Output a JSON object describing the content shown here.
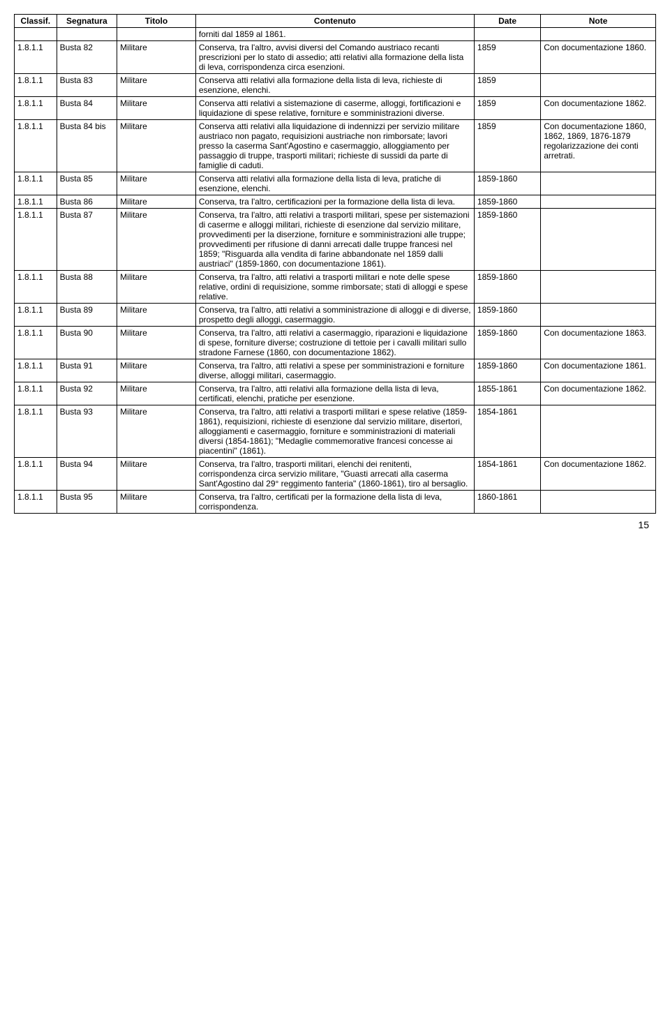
{
  "headers": {
    "classif": "Classif.",
    "segnatura": "Segnatura",
    "titolo": "Titolo",
    "contenuto": "Contenuto",
    "date": "Date",
    "note": "Note"
  },
  "rows": [
    {
      "classif": "",
      "segnatura": "",
      "titolo": "",
      "contenuto": "forniti dal 1859 al 1861.",
      "date": "",
      "note": ""
    },
    {
      "classif": "1.8.1.1",
      "segnatura": "Busta 82",
      "titolo": "Militare",
      "contenuto": "Conserva, tra l'altro, avvisi diversi del Comando austriaco recanti prescrizioni per lo stato di assedio; atti relativi alla formazione della lista di leva, corrispondenza circa esenzioni.",
      "date": "1859",
      "note": "Con documentazione 1860."
    },
    {
      "classif": "1.8.1.1",
      "segnatura": "Busta 83",
      "titolo": "Militare",
      "contenuto": "Conserva atti relativi alla formazione della lista di leva, richieste di esenzione, elenchi.",
      "date": "1859",
      "note": ""
    },
    {
      "classif": "1.8.1.1",
      "segnatura": "Busta 84",
      "titolo": "Militare",
      "contenuto": "Conserva atti relativi a sistemazione di caserme, alloggi, fortificazioni e liquidazione di spese relative, forniture e somministrazioni diverse.",
      "date": "1859",
      "note": "Con documentazione 1862."
    },
    {
      "classif": "1.8.1.1",
      "segnatura": "Busta 84 bis",
      "titolo": "Militare",
      "contenuto": "Conserva atti relativi alla liquidazione di indennizzi per servizio militare austriaco non pagato, requisizioni austriache non rimborsate; lavori presso la caserma Sant'Agostino e casermaggio, alloggiamento per passaggio di truppe, trasporti militari; richieste di sussidi da parte di famiglie di caduti.",
      "date": "1859",
      "note": "Con documentazione 1860, 1862, 1869, 1876-1879 regolarizzazione dei conti arretrati."
    },
    {
      "classif": "1.8.1.1",
      "segnatura": "Busta 85",
      "titolo": "Militare",
      "contenuto": "Conserva atti relativi alla formazione della lista di leva, pratiche di esenzione, elenchi.",
      "date": "1859-1860",
      "note": ""
    },
    {
      "classif": "1.8.1.1",
      "segnatura": "Busta 86",
      "titolo": "Militare",
      "contenuto": "Conserva, tra l'altro, certificazioni per la formazione della lista di leva.",
      "date": "1859-1860",
      "note": ""
    },
    {
      "classif": "1.8.1.1",
      "segnatura": "Busta 87",
      "titolo": "Militare",
      "contenuto": "Conserva, tra l'altro, atti relativi a trasporti militari, spese per sistemazioni di caserme e alloggi militari, richieste di esenzione dal servizio militare, provvedimenti per la diserzione, forniture e somministrazioni alle truppe; provvedimenti per rifusione di danni arrecati dalle truppe francesi nel 1859; \"Risguarda alla vendita di farine abbandonate nel 1859 dalli austriaci\" (1859-1860, con documentazione 1861).",
      "date": "1859-1860",
      "note": ""
    },
    {
      "classif": "1.8.1.1",
      "segnatura": "Busta 88",
      "titolo": "Militare",
      "contenuto": "Conserva, tra l'altro, atti relativi a trasporti militari e note delle spese relative, ordini di requisizione, somme rimborsate; stati di alloggi e spese relative.",
      "date": "1859-1860",
      "note": ""
    },
    {
      "classif": "1.8.1.1",
      "segnatura": "Busta 89",
      "titolo": "Militare",
      "contenuto": "Conserva, tra l'altro, atti relativi a somministrazione di alloggi e di diverse, prospetto degli alloggi, casermaggio.",
      "date": "1859-1860",
      "note": ""
    },
    {
      "classif": "1.8.1.1",
      "segnatura": "Busta 90",
      "titolo": "Militare",
      "contenuto": "Conserva, tra l'altro, atti relativi a casermaggio, riparazioni e liquidazione di spese, forniture diverse; costruzione di tettoie per i cavalli militari sullo stradone Farnese (1860, con documentazione 1862).",
      "date": "1859-1860",
      "note": "Con documentazione 1863."
    },
    {
      "classif": "1.8.1.1",
      "segnatura": "Busta 91",
      "titolo": "Militare",
      "contenuto": "Conserva, tra l'altro, atti relativi a spese per somministrazioni e forniture diverse, alloggi militari, casermaggio.",
      "date": "1859-1860",
      "note": "Con documentazione 1861."
    },
    {
      "classif": "1.8.1.1",
      "segnatura": "Busta 92",
      "titolo": "Militare",
      "contenuto": "Conserva, tra l'altro, atti relativi alla formazione della lista di leva, certificati, elenchi, pratiche per esenzione.",
      "date": "1855-1861",
      "note": "Con documentazione 1862."
    },
    {
      "classif": "1.8.1.1",
      "segnatura": "Busta 93",
      "titolo": "Militare",
      "contenuto": "Conserva, tra l'altro, atti relativi a trasporti militari e spese relative (1859-1861), requisizioni, richieste di esenzione dal servizio militare, disertori, alloggiamenti e casermaggio, forniture e somministrazioni di materiali diversi (1854-1861); \"Medaglie commemorative francesi concesse ai piacentini\" (1861).",
      "date": "1854-1861",
      "note": ""
    },
    {
      "classif": "1.8.1.1",
      "segnatura": "Busta 94",
      "titolo": "Militare",
      "contenuto": "Conserva, tra l'altro, trasporti militari, elenchi dei renitenti, corrispondenza circa servizio militare, \"Guasti arrecati alla caserma Sant'Agostino dal 29° reggimento fanteria\" (1860-1861), tiro al bersaglio.",
      "date": "1854-1861",
      "note": "Con documentazione 1862."
    },
    {
      "classif": "1.8.1.1",
      "segnatura": "Busta 95",
      "titolo": "Militare",
      "contenuto": "Conserva, tra l'altro, certificati per la formazione della lista di leva, corrispondenza.",
      "date": "1860-1861",
      "note": ""
    }
  ],
  "pageNumber": "15"
}
